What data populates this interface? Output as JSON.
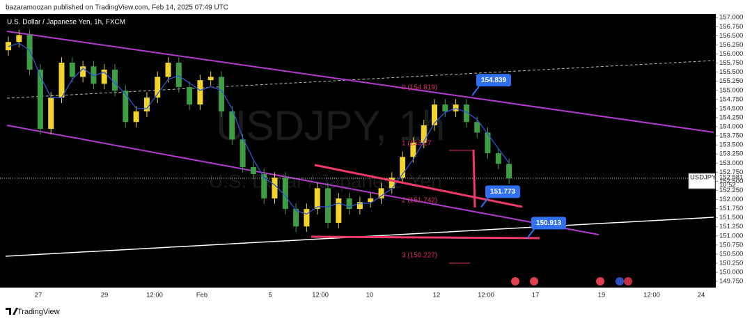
{
  "header": {
    "publisher": "bazaramoozan published on TradingView.com, Feb 14, 2025 07:49 UTC",
    "footer": "TradingView"
  },
  "chart_data": {
    "type": "candlestick",
    "title": "U.S. Dollar / Japanese Yen, 1h, FXCM",
    "watermark": "USDJPY, 1h",
    "watermark_sub": "U.S. Dollar / Japanese Yen",
    "up_color": "#f2d42e",
    "down_color": "#3f9d46",
    "ma_color": "#2f54d8",
    "ylim": [
      149.58,
      157.1
    ],
    "yticks": [
      {
        "value": 149.75,
        "label": "149.750"
      },
      {
        "value": 150,
        "label": "150.000"
      },
      {
        "value": 150.25,
        "label": "150.250"
      },
      {
        "value": 150.5,
        "label": "150.500"
      },
      {
        "value": 150.75,
        "label": "150.750"
      },
      {
        "value": 151,
        "label": "151.000"
      },
      {
        "value": 151.25,
        "label": "151.250"
      },
      {
        "value": 151.5,
        "label": "151.500"
      },
      {
        "value": 151.75,
        "label": "151.750"
      },
      {
        "value": 152,
        "label": "152.000"
      },
      {
        "value": 152.25,
        "label": "152.250"
      },
      {
        "value": 152.5,
        "label": "152.500"
      },
      {
        "value": 152.75,
        "label": "152.750"
      },
      {
        "value": 153,
        "label": "153.000"
      },
      {
        "value": 153.25,
        "label": "153.250"
      },
      {
        "value": 153.5,
        "label": "153.500"
      },
      {
        "value": 153.75,
        "label": "153.750"
      },
      {
        "value": 154,
        "label": "154.000"
      },
      {
        "value": 154.25,
        "label": "154.250"
      },
      {
        "value": 154.5,
        "label": "154.500"
      },
      {
        "value": 154.75,
        "label": "154.750"
      },
      {
        "value": 155,
        "label": "155.000"
      },
      {
        "value": 155.25,
        "label": "155.250"
      },
      {
        "value": 155.5,
        "label": "155.500"
      },
      {
        "value": 155.75,
        "label": "155.750"
      },
      {
        "value": 156,
        "label": "156.000"
      },
      {
        "value": 156.25,
        "label": "156.250"
      },
      {
        "value": 156.5,
        "label": "156.500"
      },
      {
        "value": 156.75,
        "label": "156.750"
      },
      {
        "value": 157,
        "label": "157.000"
      }
    ],
    "x_labels": [
      "27",
      "29",
      "12:00",
      "Feb",
      "5",
      "12:00",
      "10",
      "12",
      "12:00",
      "17",
      "19",
      "12:00",
      "24"
    ],
    "open": [
      156.1,
      156.33,
      156.52,
      155.57,
      153.94,
      154.8,
      155.76,
      155.37,
      155.66,
      155.18,
      155.57,
      154.99,
      154.13,
      154.42,
      154.8,
      155.37,
      155.76,
      155.09,
      154.61,
      155.28,
      155.37,
      154.42,
      153.65,
      152.89,
      152.7,
      152.03,
      152.6,
      151.74,
      151.26,
      151.74,
      152.31,
      151.36,
      152.03,
      151.74,
      151.93,
      152.03,
      152.31,
      152.6,
      153.17,
      153.56,
      154.04,
      154.61,
      154.42,
      154.61,
      154.13,
      153.84,
      153.27,
      152.98
    ],
    "high": [
      156.48,
      156.67,
      156.67,
      155.72,
      154.95,
      155.91,
      155.91,
      155.81,
      155.81,
      155.72,
      155.72,
      155.14,
      154.57,
      154.95,
      155.52,
      155.91,
      155.91,
      155.24,
      155.43,
      155.52,
      155.52,
      154.57,
      153.8,
      153.04,
      152.85,
      152.75,
      152.75,
      151.89,
      151.89,
      152.46,
      152.46,
      152.18,
      152.18,
      152.08,
      152.18,
      152.46,
      152.75,
      153.32,
      153.71,
      154.19,
      154.76,
      154.76,
      154.76,
      154.76,
      154.28,
      153.99,
      153.42,
      153.13
    ],
    "low": [
      155.95,
      156.18,
      155.42,
      153.79,
      153.79,
      154.65,
      155.22,
      155.22,
      155.03,
      155.03,
      154.84,
      153.98,
      153.98,
      154.27,
      154.65,
      155.22,
      154.94,
      154.46,
      154.46,
      155.13,
      154.27,
      153.5,
      152.74,
      152.55,
      151.88,
      151.88,
      151.59,
      151.11,
      151.11,
      151.59,
      151.21,
      151.21,
      151.59,
      151.59,
      151.78,
      151.88,
      152.16,
      152.45,
      153.02,
      153.41,
      153.89,
      154.27,
      154.27,
      153.98,
      153.69,
      153.12,
      152.83,
      152.43
    ],
    "close": [
      156.33,
      156.52,
      155.57,
      153.94,
      154.8,
      155.76,
      155.37,
      155.66,
      155.18,
      155.57,
      154.99,
      154.13,
      154.42,
      154.8,
      155.37,
      155.76,
      155.09,
      154.61,
      155.28,
      155.37,
      154.42,
      153.65,
      152.89,
      152.7,
      152.03,
      152.6,
      151.74,
      151.26,
      151.74,
      152.31,
      151.36,
      152.03,
      151.74,
      151.93,
      152.03,
      152.31,
      152.6,
      153.17,
      153.56,
      154.04,
      154.61,
      154.42,
      154.61,
      154.13,
      153.84,
      153.27,
      152.98,
      152.58
    ],
    "ma": [
      156.2,
      156.3,
      156.1,
      155.4,
      154.8,
      154.8,
      155.3,
      155.6,
      155.4,
      155.5,
      155.2,
      154.9,
      154.5,
      154.5,
      154.9,
      155.3,
      155.4,
      155.2,
      155.0,
      155.1,
      155.0,
      154.5,
      153.7,
      153.1,
      152.6,
      152.4,
      152.1,
      151.7,
      151.6,
      151.8,
      151.8,
      151.9,
      151.8,
      151.9,
      151.9,
      152.1,
      152.3,
      152.7,
      153.1,
      153.6,
      154.1,
      154.4,
      154.5,
      154.4,
      154.2,
      153.8,
      153.4,
      153.0
    ],
    "fib_labels": [
      "0 (154.819)",
      "1 (153.27",
      "2 (151.742)",
      "3 (150.227)"
    ],
    "callouts": [
      154.839,
      151.773,
      150.913
    ],
    "last_price": {
      "symbol": "USDJPY",
      "value": 152.581,
      "countdown": "10:52"
    }
  }
}
